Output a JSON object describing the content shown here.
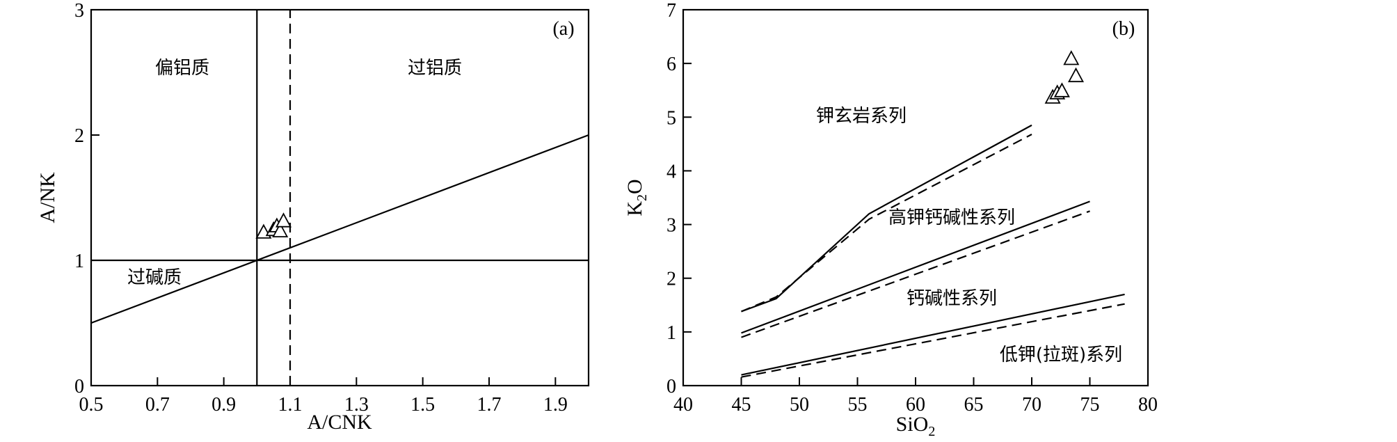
{
  "chart_data": [
    {
      "type": "scatter",
      "panel": "(a)",
      "xlabel": "A/CNK",
      "ylabel": "A/NK",
      "xlim": [
        0.5,
        2.0
      ],
      "ylim": [
        0,
        3
      ],
      "xticks": [
        "0.5",
        "0.7",
        "0.9",
        "1.1",
        "1.3",
        "1.5",
        "1.7",
        "1.9"
      ],
      "yticks": [
        "0",
        "1",
        "2",
        "3"
      ],
      "region_labels": [
        "偏铝质",
        "过铝质",
        "过碱质"
      ],
      "boundaries": [
        {
          "style": "solid",
          "points": [
            [
              1.0,
              0
            ],
            [
              1.0,
              3
            ]
          ]
        },
        {
          "style": "dashed",
          "points": [
            [
              1.1,
              0
            ],
            [
              1.1,
              3
            ]
          ]
        },
        {
          "style": "solid",
          "points": [
            [
              0.5,
              1.0
            ],
            [
              2.0,
              1.0
            ]
          ]
        },
        {
          "style": "solid",
          "points": [
            [
              0.5,
              0.5
            ],
            [
              2.0,
              2.0
            ]
          ]
        }
      ],
      "points": [
        {
          "x": 1.02,
          "y": 1.22
        },
        {
          "x": 1.05,
          "y": 1.24
        },
        {
          "x": 1.06,
          "y": 1.27
        },
        {
          "x": 1.07,
          "y": 1.23
        },
        {
          "x": 1.08,
          "y": 1.31
        }
      ],
      "marker": "open-triangle"
    },
    {
      "type": "scatter",
      "panel": "(b)",
      "xlabel": "SiO2",
      "ylabel": "K2O",
      "xlim": [
        40,
        80
      ],
      "ylim": [
        0,
        7
      ],
      "xticks": [
        "40",
        "45",
        "50",
        "55",
        "60",
        "65",
        "70",
        "75",
        "80"
      ],
      "yticks": [
        "0",
        "1",
        "2",
        "3",
        "4",
        "5",
        "6",
        "7"
      ],
      "region_labels": [
        "钾玄岩系列",
        "高钾钙碱性系列",
        "钙碱性系列",
        "低钾(拉斑)系列"
      ],
      "boundaries": [
        {
          "style": "solid",
          "points": [
            [
              45,
              1.38
            ],
            [
              48,
              1.62
            ],
            [
              56,
              3.2
            ],
            [
              70,
              4.85
            ]
          ]
        },
        {
          "style": "dashed",
          "points": [
            [
              45,
              1.38
            ],
            [
              48,
              1.65
            ],
            [
              56,
              3.1
            ],
            [
              70,
              4.68
            ]
          ]
        },
        {
          "style": "solid",
          "points": [
            [
              45,
              0.98
            ],
            [
              75,
              3.43
            ]
          ]
        },
        {
          "style": "dashed",
          "points": [
            [
              45,
              0.9
            ],
            [
              75,
              3.25
            ]
          ]
        },
        {
          "style": "solid",
          "points": [
            [
              45,
              0.2
            ],
            [
              78,
              1.7
            ]
          ]
        },
        {
          "style": "dashed",
          "points": [
            [
              45,
              0.16
            ],
            [
              78,
              1.52
            ]
          ]
        }
      ],
      "points": [
        {
          "x": 71.8,
          "y": 5.36
        },
        {
          "x": 72.2,
          "y": 5.44
        },
        {
          "x": 72.6,
          "y": 5.48
        },
        {
          "x": 73.4,
          "y": 6.08
        },
        {
          "x": 73.8,
          "y": 5.76
        }
      ],
      "marker": "open-triangle"
    }
  ]
}
